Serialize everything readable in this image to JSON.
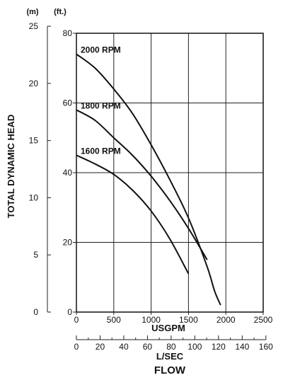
{
  "chart_data": {
    "type": "line",
    "title": "",
    "xlabel": "USGPM",
    "ylabel": "TOTAL DYNAMIC HEAD",
    "flow_label": "FLOW",
    "xlim": [
      0,
      2500
    ],
    "ylim_ft": [
      0,
      80
    ],
    "grid": true,
    "primary_x": {
      "label": "USGPM",
      "ticks": [
        0,
        500,
        1000,
        1500,
        2000,
        2500
      ]
    },
    "secondary_x": {
      "label": "L/SEC",
      "range": [
        0,
        160
      ],
      "ticks": [
        0,
        20,
        40,
        60,
        80,
        100,
        120,
        140,
        160
      ]
    },
    "left_y": {
      "unit": "(m)",
      "range": [
        0,
        25
      ],
      "ticks": [
        0,
        5,
        10,
        15,
        20,
        25
      ]
    },
    "right_y": {
      "unit": "(ft.)",
      "range": [
        0,
        80
      ],
      "ticks": [
        0,
        20,
        40,
        60,
        80
      ]
    },
    "series": [
      {
        "name": "2000 RPM",
        "x": [
          0,
          250,
          500,
          750,
          1000,
          1250,
          1500,
          1750,
          1850,
          1930
        ],
        "y": [
          74,
          70,
          64,
          57,
          48,
          38,
          27,
          13,
          6,
          2
        ]
      },
      {
        "name": "1800 RPM",
        "x": [
          0,
          250,
          500,
          750,
          1000,
          1250,
          1500,
          1750
        ],
        "y": [
          58,
          55,
          50,
          45,
          39,
          32,
          24,
          15
        ]
      },
      {
        "name": "1600 RPM",
        "x": [
          0,
          250,
          500,
          750,
          1000,
          1250,
          1500
        ],
        "y": [
          45,
          42.5,
          39.5,
          35,
          29,
          21,
          11
        ]
      }
    ]
  }
}
